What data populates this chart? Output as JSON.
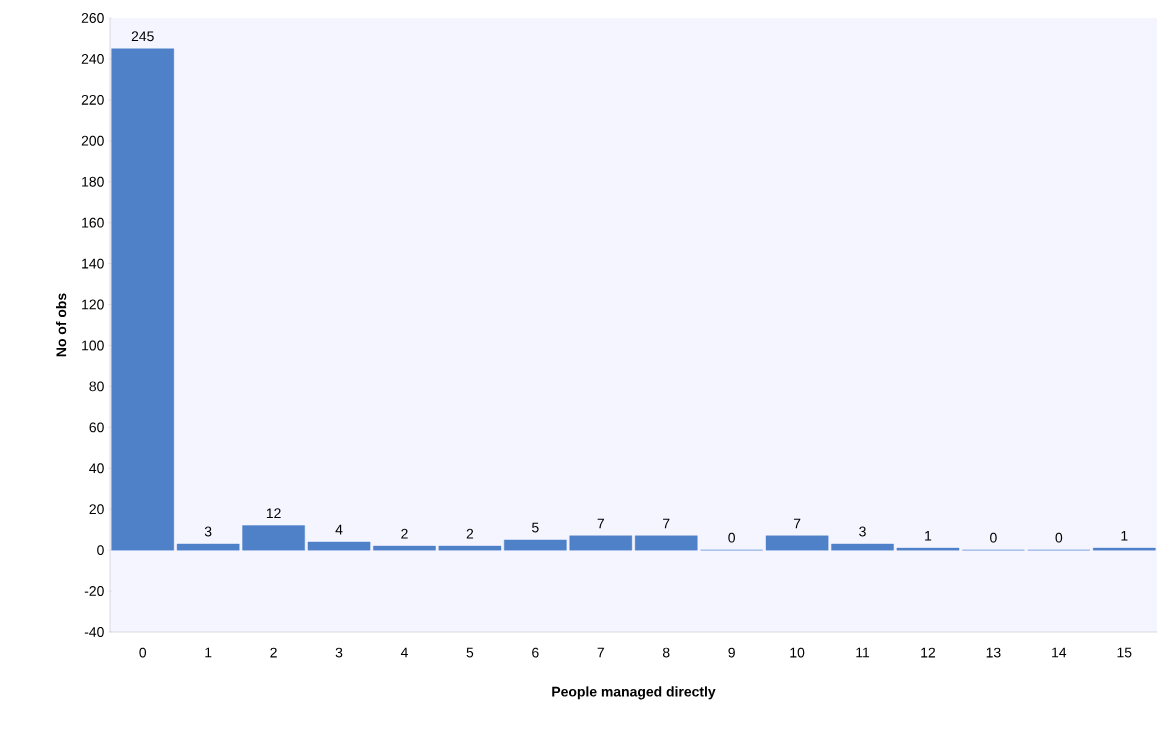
{
  "chart_data": {
    "type": "bar",
    "xlabel": "People managed directly",
    "ylabel": "No of obs",
    "categories": [
      "0",
      "1",
      "2",
      "3",
      "4",
      "5",
      "6",
      "7",
      "8",
      "9",
      "10",
      "11",
      "12",
      "13",
      "14",
      "15"
    ],
    "values": [
      245,
      3,
      12,
      4,
      2,
      2,
      5,
      7,
      7,
      0,
      7,
      3,
      1,
      0,
      0,
      1
    ],
    "color": "#4f81c9",
    "ylim": [
      -40,
      260
    ],
    "yticks": [
      -40,
      -20,
      0,
      20,
      40,
      60,
      80,
      100,
      120,
      140,
      160,
      180,
      200,
      220,
      240,
      260
    ],
    "data_labels": true,
    "grid": false
  }
}
